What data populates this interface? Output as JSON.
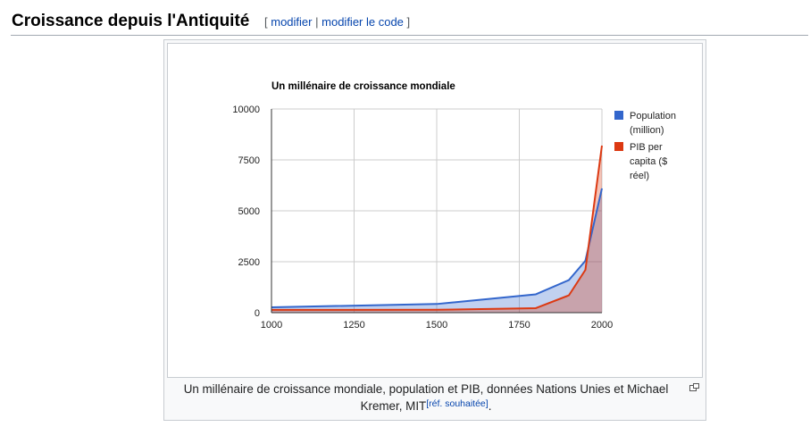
{
  "section": {
    "title": "Croissance depuis l'Antiquité",
    "bracket_open": "[",
    "edit_label": "modifier",
    "separator": "|",
    "edit_code_label": "modifier le code",
    "bracket_close": "]"
  },
  "caption": {
    "text": "Un millénaire de croissance mondiale, population et PIB, données Nations Unies et Michael Kremer, MIT",
    "ref_label": "[réf. souhaitée]",
    "end": "."
  },
  "colors": {
    "population": "#3366cc",
    "pib": "#dc3912",
    "grid": "#cccccc",
    "axis": "#333333"
  },
  "chart_data": {
    "type": "area",
    "title": "Un millénaire de croissance mondiale",
    "xlabel": "",
    "ylabel": "",
    "x": [
      1000,
      1500,
      1800,
      1900,
      1950,
      2000
    ],
    "series": [
      {
        "name": "Population (million)",
        "legend_lines": [
          "Population",
          "(million)"
        ],
        "values": [
          265,
          425,
          900,
          1600,
          2550,
          6100
        ]
      },
      {
        "name": "PIB per capita ($ réel)",
        "legend_lines": [
          "PIB per",
          "capita ($",
          "réel)"
        ],
        "values": [
          135,
          140,
          220,
          850,
          2100,
          8200
        ]
      }
    ],
    "xlim": [
      1000,
      2000
    ],
    "ylim": [
      0,
      10000
    ],
    "xticks": [
      "1000",
      "1250",
      "1500",
      "1750",
      "2000"
    ],
    "yticks": [
      "0",
      "2500",
      "5000",
      "7500",
      "10000"
    ],
    "grid": true,
    "legend_position": "right"
  }
}
